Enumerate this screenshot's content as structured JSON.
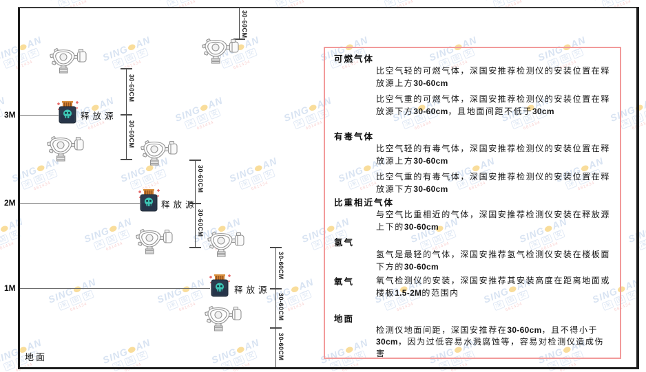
{
  "watermark": {
    "brand_left": "SING",
    "brand_right": "AN",
    "cjk_chars": [
      "深",
      "国",
      "安"
    ],
    "subtext": "681434",
    "brand_color": "#b9cde8",
    "dot_color": "#f5c24a",
    "subtext_color": "#f2a8a8"
  },
  "diagram": {
    "ground_label": "地面",
    "height_labels": [
      {
        "label": "3M"
      },
      {
        "label": "2M"
      },
      {
        "label": "1M"
      }
    ],
    "dimension_label": "30-60CM",
    "release_source_label": "释放源",
    "colors": {
      "frame": "#1d1d1d",
      "dimension_line": "#4a4a4a",
      "source_body": "#2d3b4e",
      "source_cap": "#c8782e",
      "source_face": "#3ec5b5",
      "sparkle": "#e35050",
      "detector_outline": "#939393"
    }
  },
  "panel": {
    "border_color": "#f29a9a",
    "sections": [
      {
        "key": "combustible-gas",
        "heading": "可燃气体",
        "paragraphs": [
          [
            {
              "t": "比空气轻的可燃气体，深国安推荐检测仪的安装位置在释放源上方"
            },
            {
              "t": "30-60cm",
              "b": true
            }
          ],
          [
            {
              "t": "比空气重的可燃气体，深国安推荐检测仪的安装位置在释放源下方"
            },
            {
              "t": "30-60cm",
              "b": true
            },
            {
              "t": "，且地面间距不低于"
            },
            {
              "t": "30cm",
              "b": true
            }
          ]
        ]
      },
      {
        "key": "toxic-gas",
        "heading": "有毒气体",
        "paragraphs": [
          [
            {
              "t": "比空气轻的有毒气体，深国安推荐检测仪的安装位置在释放源上方"
            },
            {
              "t": "30-60cm",
              "b": true
            }
          ],
          [
            {
              "t": "比空气重的有毒气体，深国安推荐检测仪的安装位置在释放源下方"
            },
            {
              "t": "30-60cm",
              "b": true
            }
          ]
        ]
      },
      {
        "key": "similar-density-gas",
        "heading": "比重相近气体",
        "paragraphs": [
          [
            {
              "t": "与空气比重相近的气体，深国安推荐检测仪安装在释放源上下的"
            },
            {
              "t": "30-60cm",
              "b": true
            }
          ]
        ]
      },
      {
        "key": "hydrogen",
        "heading": "氢气",
        "paragraphs": [
          [
            {
              "t": "氢气是最轻的气体，深国安推荐氢气检测仪安装在楼板面下方的"
            },
            {
              "t": "30-60cm",
              "b": true
            }
          ]
        ]
      },
      {
        "key": "oxygen",
        "heading": "氧气",
        "inline": true,
        "paragraphs": [
          [
            {
              "t": "氧气检测仪的安装，深国安推荐其安装高度在距离地面或楼板"
            },
            {
              "t": "1.5-2M",
              "b": true
            },
            {
              "t": "的范围内"
            }
          ]
        ]
      },
      {
        "key": "ground",
        "heading": "地面",
        "paragraphs": [
          [
            {
              "t": "检测仪地面间距，深国安推荐在"
            },
            {
              "t": "30-60cm",
              "b": true
            },
            {
              "t": "，且不得小于"
            },
            {
              "t": "30cm",
              "b": true
            },
            {
              "t": "，因为过低容易水溅腐蚀等，容易对检测仪造成伤害"
            }
          ]
        ]
      }
    ]
  }
}
